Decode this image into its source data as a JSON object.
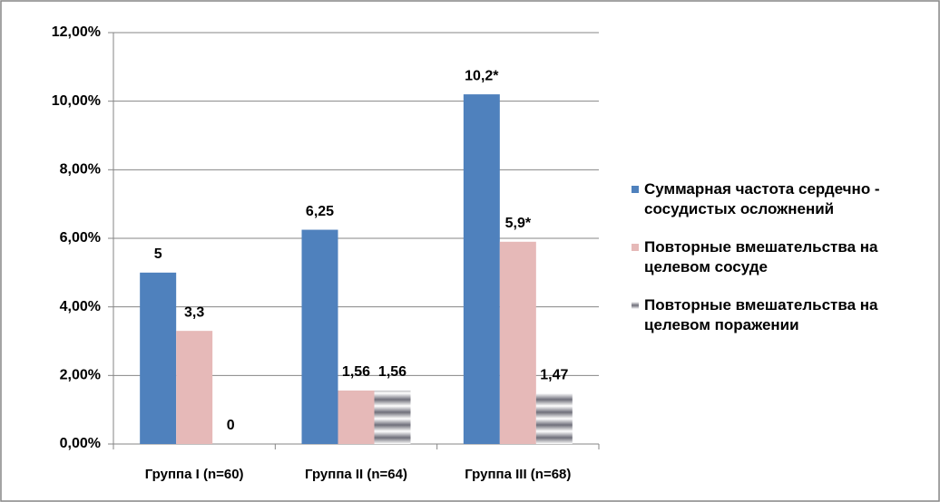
{
  "chart_data": {
    "type": "bar",
    "categories": [
      "Группа I (n=60)",
      "Группа II (n=64)",
      "Группа III (n=68)"
    ],
    "series": [
      {
        "name": "Суммарная частота сердечно - сосудистых осложнений",
        "color": "#4f81bd",
        "values": [
          5,
          6.25,
          10.2
        ],
        "value_labels": [
          "5",
          "6,25",
          "10,2*"
        ]
      },
      {
        "name": "Повторные вмешательства на целевом сосуде",
        "color": "#e6b9b8",
        "values": [
          3.3,
          1.56,
          5.9
        ],
        "value_labels": [
          "3,3",
          "1,56",
          "5,9*"
        ]
      },
      {
        "name": "Повторные вмешательства на целевом поражении",
        "color": "#6f6f7a",
        "values": [
          0,
          1.56,
          1.47
        ],
        "value_labels": [
          "0",
          "1,56",
          "1,47"
        ]
      }
    ],
    "ylim": [
      0,
      12
    ],
    "yticks": [
      {
        "value": 0,
        "label": "0,00%"
      },
      {
        "value": 2,
        "label": "2,00%"
      },
      {
        "value": 4,
        "label": "4,00%"
      },
      {
        "value": 6,
        "label": "6,00%"
      },
      {
        "value": 8,
        "label": "8,00%"
      },
      {
        "value": 10,
        "label": "10,00%"
      },
      {
        "value": 12,
        "label": "12,00%"
      }
    ],
    "grid": true,
    "legend": "right"
  }
}
